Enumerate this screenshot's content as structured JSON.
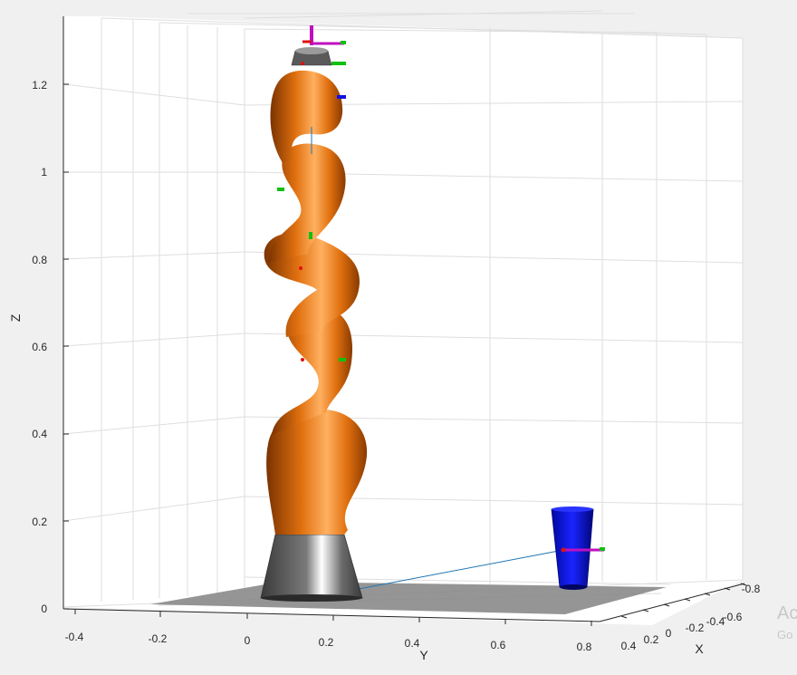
{
  "figure": {
    "background": "#f0f0f0",
    "axes_background": "#ffffff",
    "robot_color": "#e0700f",
    "base_color": "#6e6e6e",
    "object_color": "#0a10e0",
    "floor_color": "#8a8a8a"
  },
  "axes": {
    "xlabel": "X",
    "ylabel": "Y",
    "zlabel": "Z",
    "y_ticks": [
      "-0.4",
      "-0.2",
      "0",
      "0.2",
      "0.4",
      "0.6",
      "0.8"
    ],
    "x_ticks": [
      "0.4",
      "0.2",
      "0",
      "-0.2",
      "-0.4",
      "-0.6",
      "-0.8"
    ],
    "z_ticks": [
      "0",
      "0.2",
      "0.4",
      "0.6",
      "0.8",
      "1",
      "1.2"
    ],
    "grid": true
  },
  "watermark": {
    "line1": "Ac",
    "line2": "Go"
  },
  "scene": {
    "robot": "serial-arm-robot",
    "target": "cup"
  }
}
